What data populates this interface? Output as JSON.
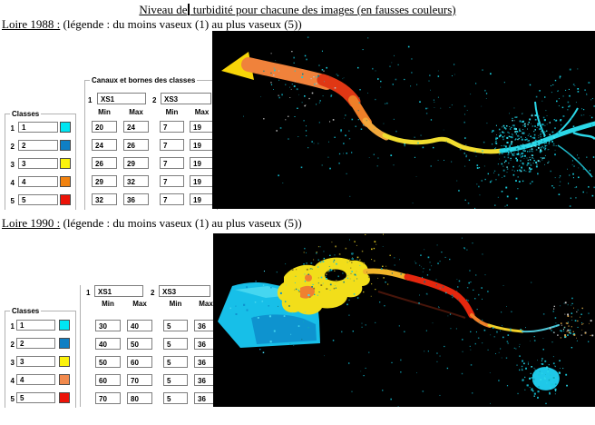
{
  "doc": {
    "title_before_cursor": "Niveau de",
    "title_after_cursor": " turbidité pour chacune des images (en fausses couleurs)"
  },
  "panels": [
    {
      "heading_title": "Loire 1988 :",
      "heading_note": " (légende : du moins vaseux (1) au plus vaseux (5))",
      "classes": {
        "label": "Classes",
        "rows": [
          {
            "n": "1",
            "val": "1",
            "color": "#00E6F2"
          },
          {
            "n": "2",
            "val": "2",
            "color": "#0F7FC4"
          },
          {
            "n": "3",
            "val": "3",
            "color": "#FBF20C"
          },
          {
            "n": "4",
            "val": "4",
            "color": "#F1820F"
          },
          {
            "n": "5",
            "val": "5",
            "color": "#EC1308"
          }
        ]
      },
      "channels": {
        "label": "Canaux et bornes des classes",
        "ch1": {
          "n": "1",
          "name": "XS1",
          "min_header": "Min",
          "max_header": "Max",
          "rows": [
            {
              "min": "20",
              "max": "24"
            },
            {
              "min": "24",
              "max": "26"
            },
            {
              "min": "26",
              "max": "29"
            },
            {
              "min": "29",
              "max": "32"
            },
            {
              "min": "32",
              "max": "36"
            }
          ]
        },
        "ch2": {
          "n": "2",
          "name": "XS3",
          "min_header": "Min",
          "max_header": "Max",
          "rows": [
            {
              "min": "7",
              "max": "19"
            },
            {
              "min": "7",
              "max": "19"
            },
            {
              "min": "7",
              "max": "19"
            },
            {
              "min": "7",
              "max": "19"
            },
            {
              "min": "7",
              "max": "19"
            }
          ]
        }
      },
      "image": {
        "alt": "Image satellite en fausses couleurs de l'estuaire de la Loire 1988 : estuaire large orange et rouge à l'ouest, ruban jaune au centre, fleuve cyan à l'est avec amas de points cyan (zone urbaine)",
        "background": "#000000"
      }
    },
    {
      "heading_title": "Loire 1990 :",
      "heading_note": " (légende : du moins vaseux (1) au plus vaseux (5))",
      "classes": {
        "label": "Classes",
        "rows": [
          {
            "n": "1",
            "val": "1",
            "color": "#00E6F2"
          },
          {
            "n": "2",
            "val": "2",
            "color": "#0F7FC4"
          },
          {
            "n": "3",
            "val": "3",
            "color": "#FBF20C"
          },
          {
            "n": "4",
            "val": "4",
            "color": "#F28A4D"
          },
          {
            "n": "5",
            "val": "5",
            "color": "#EC1308"
          }
        ]
      },
      "channels": {
        "label": "",
        "ch1": {
          "n": "1",
          "name": "XS1",
          "min_header": "Min",
          "max_header": "Max",
          "rows": [
            {
              "min": "30",
              "max": "40"
            },
            {
              "min": "40",
              "max": "50"
            },
            {
              "min": "50",
              "max": "60"
            },
            {
              "min": "60",
              "max": "70"
            },
            {
              "min": "70",
              "max": "80"
            }
          ]
        },
        "ch2": {
          "n": "2",
          "name": "XS3",
          "min_header": "Min",
          "max_header": "Max",
          "rows": [
            {
              "min": "5",
              "max": "36"
            },
            {
              "min": "5",
              "max": "36"
            },
            {
              "min": "5",
              "max": "36"
            },
            {
              "min": "5",
              "max": "36"
            },
            {
              "min": "5",
              "max": "36"
            }
          ]
        }
      },
      "image": {
        "alt": "Image satellite en fausses couleurs de l'estuaire de la Loire 1990 : baie cyan à l'ouest, estuaire jaune avec île noire, ruban orange puis rouge vers l'est, lac cyan au sud-est",
        "background": "#000000"
      }
    }
  ]
}
